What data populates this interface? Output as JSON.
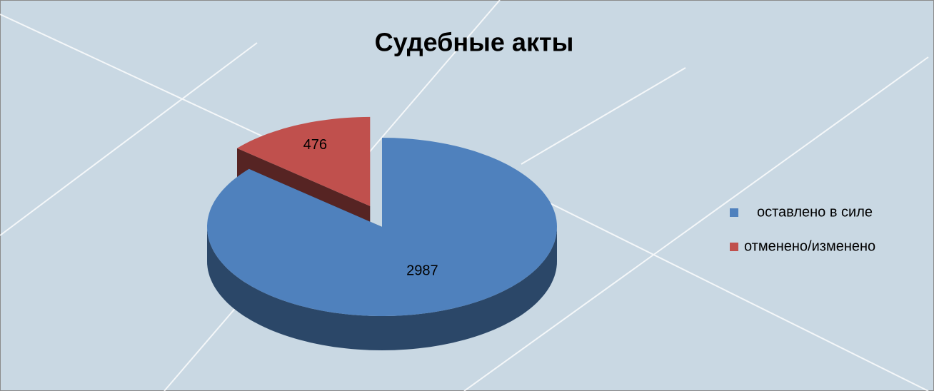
{
  "chart_data": {
    "type": "pie",
    "title": "Судебные акты",
    "categories": [
      "оставлено в силе",
      "отменено/изменено"
    ],
    "values": [
      2987,
      476
    ],
    "colors": [
      "#4f81bd",
      "#c0504d"
    ],
    "legend": "right"
  }
}
